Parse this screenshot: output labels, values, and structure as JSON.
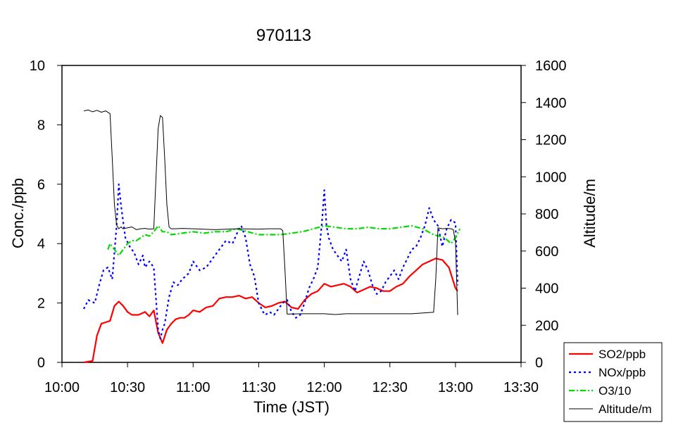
{
  "chart_data": {
    "type": "line",
    "title": "970113",
    "xlabel": "Time (JST)",
    "ylabel": "Conc./ppb",
    "y2label": "Altitude/m",
    "x_ticks": [
      "10:00",
      "10:30",
      "11:00",
      "11:30",
      "12:00",
      "12:30",
      "13:00",
      "13:30"
    ],
    "y_ticks": [
      "0",
      "2",
      "4",
      "6",
      "8",
      "10"
    ],
    "y2_ticks": [
      "0",
      "200",
      "400",
      "600",
      "800",
      "1000",
      "1200",
      "1400",
      "1600"
    ],
    "xlim_minutes_from_start": [
      0,
      210
    ],
    "ylim": [
      0,
      10
    ],
    "y2lim": [
      0,
      1600
    ],
    "grid": false,
    "legend_position": "bottom-right",
    "series": [
      {
        "name": "SO2/ppb",
        "color": "#ff0000",
        "dash": "solid",
        "axis": "left",
        "x_minutes": [
          10,
          14,
          16,
          18,
          20,
          22,
          24,
          26,
          28,
          30,
          32,
          35,
          38,
          40,
          42,
          44,
          46,
          48,
          50,
          52,
          54,
          56,
          58,
          60,
          63,
          66,
          69,
          72,
          75,
          78,
          81,
          84,
          87,
          90,
          93,
          96,
          99,
          102,
          105,
          108,
          111,
          114,
          117,
          120,
          123,
          126,
          129,
          132,
          135,
          138,
          141,
          144,
          147,
          150,
          153,
          156,
          159,
          162,
          165,
          168,
          171,
          174,
          177,
          180,
          181
        ],
        "values": [
          0,
          0.05,
          0.9,
          1.3,
          1.35,
          1.4,
          1.9,
          2.05,
          1.9,
          1.7,
          1.6,
          1.6,
          1.7,
          1.55,
          1.75,
          1.0,
          0.65,
          1.1,
          1.3,
          1.45,
          1.5,
          1.5,
          1.6,
          1.75,
          1.7,
          1.85,
          1.9,
          2.15,
          2.2,
          2.2,
          2.25,
          2.15,
          2.2,
          2.0,
          1.85,
          1.9,
          2.0,
          2.05,
          1.85,
          1.8,
          2.1,
          2.3,
          2.4,
          2.65,
          2.55,
          2.6,
          2.65,
          2.55,
          2.35,
          2.45,
          2.55,
          2.5,
          2.4,
          2.4,
          2.55,
          2.65,
          2.9,
          3.1,
          3.3,
          3.4,
          3.5,
          3.45,
          3.2,
          2.5,
          2.4
        ]
      },
      {
        "name": "NOx/ppb",
        "color": "#0000ff",
        "dash": "dotted",
        "axis": "left",
        "x_minutes": [
          10,
          12,
          15,
          17,
          19,
          21,
          23,
          25,
          26,
          27,
          29,
          31,
          33,
          35,
          37,
          38,
          40,
          42,
          44,
          45,
          46,
          47,
          49,
          51,
          53,
          55,
          58,
          60,
          63,
          66,
          69,
          72,
          75,
          78,
          81,
          82,
          84,
          86,
          88,
          90,
          92,
          93,
          95,
          97,
          99,
          101,
          103,
          105,
          107,
          109,
          111,
          113,
          115,
          117,
          119,
          120,
          121,
          122,
          124,
          126,
          128,
          130,
          132,
          134,
          136,
          138,
          140,
          142,
          144,
          146,
          148,
          150,
          152,
          154,
          156,
          158,
          160,
          162,
          164,
          166,
          168,
          170,
          172,
          174,
          176,
          178,
          180,
          181
        ],
        "values": [
          1.8,
          2.1,
          2.0,
          2.6,
          3.1,
          3.2,
          2.8,
          4.6,
          6.0,
          5.3,
          4.2,
          3.9,
          3.7,
          3.3,
          3.6,
          3.2,
          3.4,
          3.2,
          1.1,
          0.8,
          1.1,
          1.3,
          2.2,
          2.7,
          2.6,
          2.8,
          3.0,
          3.4,
          3.1,
          3.2,
          3.5,
          3.8,
          4.1,
          4.0,
          4.5,
          4.6,
          4.2,
          3.3,
          2.9,
          2.0,
          1.7,
          1.6,
          1.7,
          1.6,
          1.8,
          2.0,
          2.1,
          1.7,
          1.5,
          1.6,
          2.0,
          2.5,
          2.8,
          3.2,
          4.8,
          5.8,
          4.6,
          4.2,
          3.8,
          3.6,
          3.4,
          3.8,
          2.8,
          2.4,
          2.9,
          3.4,
          3.1,
          2.6,
          2.3,
          2.4,
          2.7,
          2.9,
          3.1,
          2.8,
          3.2,
          3.5,
          3.8,
          3.9,
          4.2,
          4.6,
          5.2,
          4.8,
          4.6,
          3.9,
          4.5,
          4.8,
          4.7,
          2.6
        ]
      },
      {
        "name": "O3/10",
        "color": "#00dd00",
        "dash": "dashdot",
        "axis": "left",
        "x_minutes": [
          21,
          22,
          24,
          26,
          28,
          30,
          32,
          34,
          36,
          38,
          40,
          42,
          44,
          46,
          48,
          50,
          55,
          60,
          65,
          70,
          75,
          80,
          85,
          90,
          95,
          100,
          105,
          110,
          115,
          120,
          125,
          130,
          135,
          140,
          145,
          150,
          155,
          160,
          165,
          170,
          175,
          178,
          180,
          182
        ],
        "values": [
          3.8,
          4.0,
          3.8,
          3.6,
          3.8,
          4.0,
          4.1,
          4.1,
          4.2,
          4.3,
          4.25,
          4.4,
          4.6,
          4.4,
          4.4,
          4.3,
          4.35,
          4.4,
          4.35,
          4.4,
          4.4,
          4.5,
          4.4,
          4.3,
          4.3,
          4.3,
          4.35,
          4.4,
          4.5,
          4.6,
          4.55,
          4.5,
          4.5,
          4.55,
          4.5,
          4.5,
          4.55,
          4.6,
          4.5,
          4.3,
          4.2,
          4.0,
          4.2,
          4.5
        ]
      },
      {
        "name": "Altitude/m",
        "color": "#000000",
        "dash": "solid",
        "axis": "right",
        "x_minutes": [
          10,
          12,
          14,
          16,
          18,
          20,
          22,
          23,
          24,
          25,
          26,
          27,
          28,
          30,
          32,
          34,
          36,
          38,
          40,
          42,
          44,
          45,
          46,
          47,
          48,
          49,
          50,
          52,
          55,
          60,
          70,
          80,
          90,
          95,
          100,
          101,
          102,
          103,
          110,
          120,
          125,
          130,
          140,
          150,
          160,
          170,
          171,
          172,
          174,
          176,
          178,
          179,
          180,
          181
        ],
        "values": [
          1355,
          1360,
          1350,
          1358,
          1348,
          1355,
          1340,
          1100,
          850,
          740,
          720,
          730,
          720,
          725,
          730,
          715,
          720,
          722,
          718,
          720,
          1260,
          1330,
          1320,
          1100,
          850,
          730,
          720,
          720,
          722,
          720,
          715,
          720,
          718,
          720,
          720,
          710,
          500,
          260,
          262,
          262,
          258,
          262,
          262,
          262,
          262,
          270,
          450,
          725,
          720,
          722,
          720,
          715,
          650,
          255
        ]
      }
    ]
  }
}
